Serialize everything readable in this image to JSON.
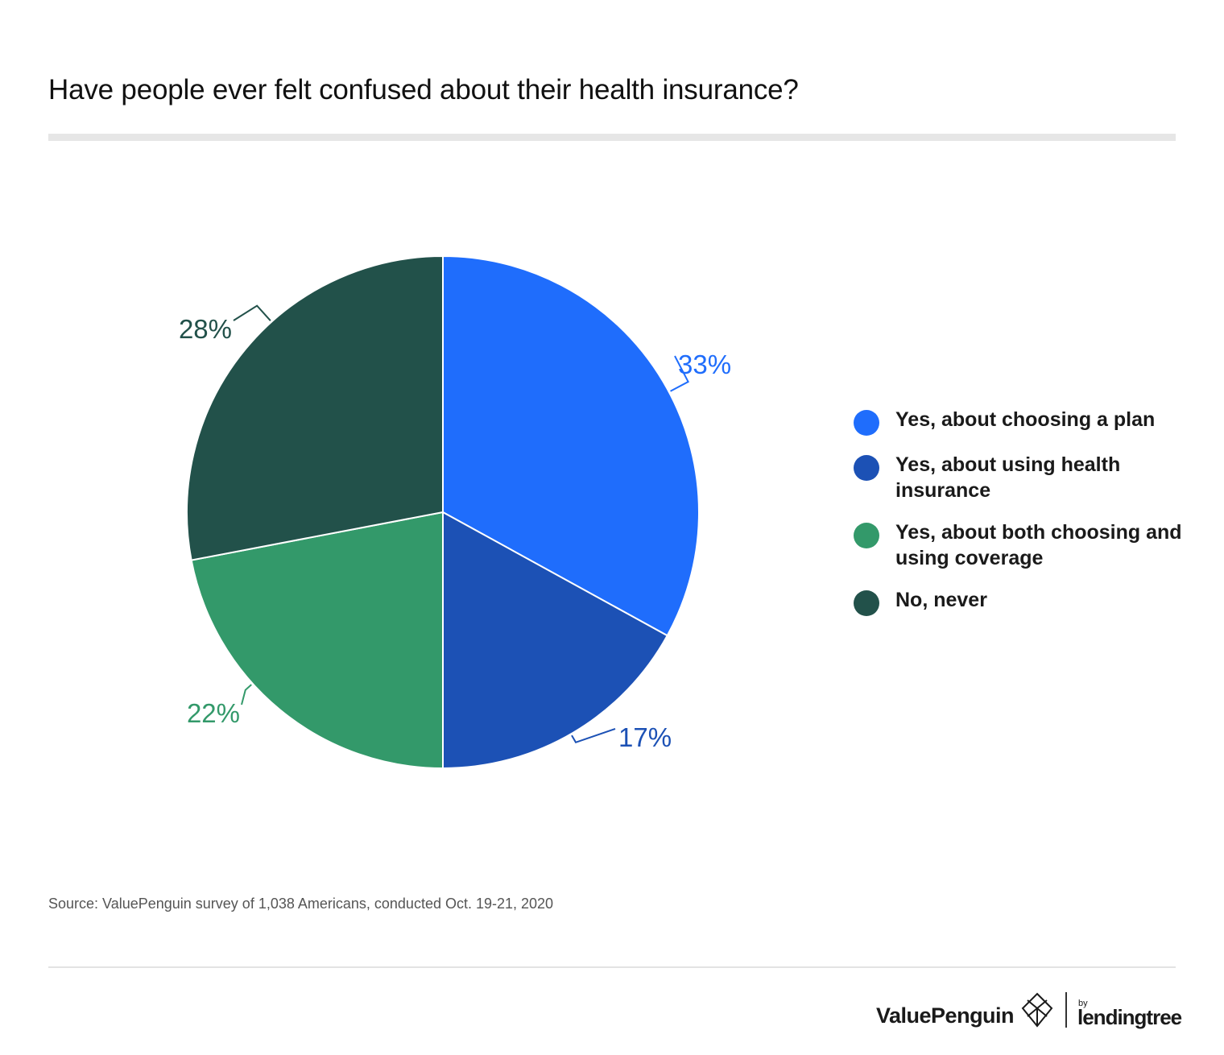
{
  "title": "Have people ever felt confused about their health insurance?",
  "source": "Source: ValuePenguin survey of 1,038 Americans, conducted Oct. 19-21, 2020",
  "brand": {
    "name": "ValuePenguin",
    "by": "by",
    "partner": "lendingtree"
  },
  "colors": {
    "title_bar": "#e6e6e6",
    "source_text": "#555555"
  },
  "chart_data": {
    "type": "pie",
    "title": "Have people ever felt confused about their health insurance?",
    "legend_position": "right",
    "slices": [
      {
        "label": "Yes, about choosing a plan",
        "value": 33,
        "display": "33%",
        "color": "#1f6dfc"
      },
      {
        "label": "Yes, about using health insurance",
        "value": 17,
        "display": "17%",
        "color": "#1c51b5"
      },
      {
        "label": "Yes, about both choosing and using coverage",
        "value": 22,
        "display": "22%",
        "color": "#33996a"
      },
      {
        "label": "No, never",
        "value": 28,
        "display": "28%",
        "color": "#22514a"
      }
    ],
    "legend": [
      {
        "line1": "Yes, about choosing a plan",
        "line2": ""
      },
      {
        "line1": "Yes, about using health",
        "line2": "insurance"
      },
      {
        "line1": "Yes, about both choosing and",
        "line2": "using coverage"
      },
      {
        "line1": "No, never",
        "line2": ""
      }
    ]
  }
}
